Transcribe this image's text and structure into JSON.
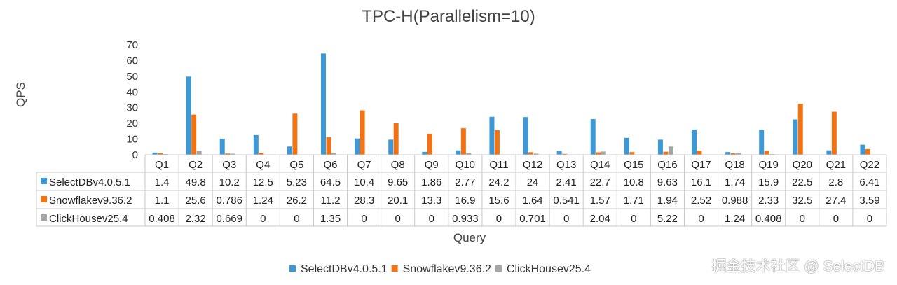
{
  "chart_data": {
    "type": "bar",
    "title": "TPC-H(Parallelism=10)",
    "xlabel": "Query",
    "ylabel": "QPS",
    "ylim": [
      0,
      70
    ],
    "yticks": [
      0,
      10,
      20,
      30,
      40,
      50,
      60,
      70
    ],
    "grid": false,
    "legend_position": "bottom",
    "categories": [
      "Q1",
      "Q2",
      "Q3",
      "Q4",
      "Q5",
      "Q6",
      "Q7",
      "Q8",
      "Q9",
      "Q10",
      "Q11",
      "Q12",
      "Q13",
      "Q14",
      "Q15",
      "Q16",
      "Q17",
      "Q18",
      "Q19",
      "Q20",
      "Q21",
      "Q22"
    ],
    "series": [
      {
        "name": "SelectDBv4.0.5.1",
        "color": "#3d98d6",
        "values": [
          1.4,
          49.8,
          10.2,
          12.5,
          5.23,
          64.5,
          10.4,
          9.65,
          1.86,
          2.77,
          24.2,
          24,
          2.41,
          22.7,
          10.8,
          9.63,
          16.1,
          1.74,
          15.9,
          22.5,
          2.8,
          6.41
        ]
      },
      {
        "name": "Snowflakev9.36.2",
        "color": "#f27314",
        "values": [
          1.1,
          25.6,
          0.786,
          1.24,
          26.2,
          11.2,
          28.3,
          20.1,
          13.3,
          16.9,
          15.6,
          1.64,
          0.541,
          1.57,
          1.71,
          1.94,
          2.52,
          0.988,
          2.33,
          32.5,
          27.4,
          3.59
        ]
      },
      {
        "name": "ClickHousev25.4",
        "color": "#a5a5a5",
        "values": [
          0.408,
          2.32,
          0.669,
          0,
          0,
          1.35,
          0,
          0,
          0,
          0.933,
          0,
          0.701,
          0,
          2.04,
          0,
          5.22,
          0,
          1.24,
          0.408,
          0,
          0,
          0
        ]
      }
    ]
  },
  "watermark": "掘金技术社区 @ SelectDB"
}
